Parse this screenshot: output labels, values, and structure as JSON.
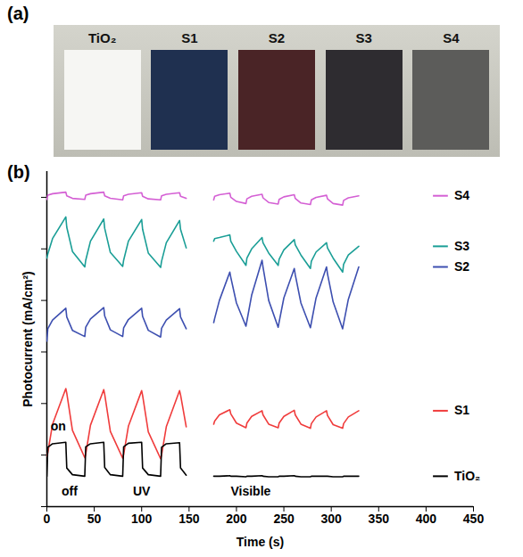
{
  "photo": {
    "panel_label": "(a)",
    "samples": [
      {
        "name": "TiO₂",
        "color": "#f6f6f3"
      },
      {
        "name": "S1",
        "color": "#1f3050"
      },
      {
        "name": "S2",
        "color": "#4a2426"
      },
      {
        "name": "S3",
        "color": "#2e2c30"
      },
      {
        "name": "S4",
        "color": "#5c5c5a"
      }
    ]
  },
  "chart_data": {
    "type": "line",
    "panel_label": "(b)",
    "x_label": "Time (s)",
    "y_label": "Photocurrent (mA/cm²)",
    "xlim": [
      0,
      450
    ],
    "xticks": [
      0,
      50,
      100,
      150,
      200,
      250,
      300,
      350,
      400,
      450
    ],
    "ylim": [
      0,
      6.5
    ],
    "yticks": [
      0,
      1,
      2,
      3,
      4,
      5,
      6
    ],
    "tick_labels": "x",
    "grid": false,
    "legend": "right",
    "x": [
      0,
      1,
      6,
      20,
      21,
      27,
      40,
      41,
      46,
      60,
      61,
      67,
      80,
      81,
      86,
      100,
      101,
      107,
      120,
      121,
      126,
      140,
      141,
      147,
      160,
      176,
      177,
      182,
      193,
      194,
      200,
      210,
      211,
      216,
      227,
      228,
      234,
      244,
      245,
      250,
      261,
      262,
      268,
      278,
      279,
      284,
      295,
      296,
      302,
      312,
      313,
      318,
      329
    ],
    "series": [
      {
        "name": "S4",
        "color": "#d45fd4",
        "values": [
          5.96,
          6.04,
          6.07,
          6.1,
          6.03,
          5.98,
          5.96,
          6.04,
          6.07,
          6.1,
          6.03,
          5.98,
          5.95,
          6.03,
          6.06,
          6.09,
          6.02,
          5.97,
          5.95,
          6.03,
          6.06,
          6.09,
          6.02,
          5.98,
          null,
          5.95,
          6.02,
          6.05,
          6.08,
          6.0,
          5.92,
          5.88,
          5.97,
          6.02,
          6.06,
          5.99,
          5.9,
          5.87,
          5.96,
          6.01,
          6.05,
          5.98,
          5.89,
          5.86,
          5.95,
          6.0,
          6.04,
          5.97,
          5.88,
          5.85,
          5.94,
          5.99,
          6.03
        ]
      },
      {
        "name": "S3",
        "color": "#1a9e96",
        "values": [
          4.82,
          4.9,
          5.2,
          5.62,
          5.42,
          4.95,
          4.65,
          4.78,
          5.15,
          5.58,
          5.4,
          4.93,
          4.66,
          4.78,
          5.15,
          5.57,
          5.38,
          4.92,
          4.64,
          4.76,
          5.12,
          5.55,
          5.38,
          5.02,
          null,
          5.15,
          5.2,
          5.22,
          5.27,
          5.15,
          4.95,
          4.68,
          4.82,
          5.0,
          5.22,
          5.12,
          4.92,
          4.68,
          4.8,
          4.98,
          5.18,
          5.08,
          4.88,
          4.62,
          4.76,
          4.94,
          5.12,
          5.02,
          4.82,
          4.55,
          4.7,
          4.88,
          5.05
        ]
      },
      {
        "name": "S2",
        "color": "#3d4fb0",
        "values": [
          3.21,
          3.45,
          3.62,
          3.85,
          3.68,
          3.42,
          3.3,
          3.48,
          3.64,
          3.86,
          3.7,
          3.43,
          3.3,
          3.47,
          3.63,
          3.85,
          3.69,
          3.42,
          3.29,
          3.46,
          3.62,
          3.84,
          3.68,
          3.45,
          null,
          3.57,
          3.65,
          4.0,
          4.55,
          4.45,
          3.95,
          3.5,
          3.6,
          4.1,
          4.78,
          4.65,
          4.0,
          3.48,
          3.58,
          4.05,
          4.62,
          4.5,
          3.95,
          3.47,
          3.57,
          4.05,
          4.65,
          4.52,
          3.97,
          3.45,
          3.55,
          4.02,
          4.65
        ]
      },
      {
        "name": "S1",
        "color": "#f03c3c",
        "values": [
          0.98,
          1.05,
          1.6,
          2.29,
          2.2,
          1.48,
          0.95,
          1.02,
          1.58,
          2.27,
          2.18,
          1.46,
          0.94,
          1.01,
          1.56,
          2.25,
          2.16,
          1.45,
          0.93,
          1.0,
          1.55,
          2.25,
          2.17,
          1.55,
          null,
          1.6,
          1.66,
          1.78,
          1.88,
          1.8,
          1.62,
          1.53,
          1.62,
          1.75,
          1.86,
          1.78,
          1.6,
          1.53,
          1.62,
          1.75,
          1.87,
          1.78,
          1.6,
          1.52,
          1.61,
          1.74,
          1.86,
          1.77,
          1.59,
          1.52,
          1.61,
          1.74,
          1.86
        ]
      },
      {
        "name": "TiO₂",
        "color": "#000000",
        "values": [
          0.59,
          1.15,
          1.22,
          1.25,
          0.75,
          0.62,
          0.59,
          1.16,
          1.22,
          1.25,
          0.76,
          0.62,
          0.59,
          1.16,
          1.23,
          1.25,
          0.75,
          0.62,
          0.59,
          1.15,
          1.22,
          1.24,
          0.75,
          0.61,
          null,
          0.59,
          0.59,
          0.59,
          0.6,
          0.59,
          0.59,
          0.58,
          0.59,
          0.59,
          0.6,
          0.59,
          0.58,
          0.58,
          0.59,
          0.59,
          0.6,
          0.59,
          0.58,
          0.58,
          0.59,
          0.59,
          0.59,
          0.59,
          0.58,
          0.58,
          0.59,
          0.59,
          0.59
        ]
      }
    ],
    "annotations": [
      {
        "text": "on",
        "x": 12,
        "y": 1.55
      },
      {
        "text": "off",
        "x": 24,
        "y": 0.3
      },
      {
        "text": "UV",
        "x": 100,
        "y": 0.3
      },
      {
        "text": "Visible",
        "x": 215,
        "y": 0.3
      }
    ]
  }
}
